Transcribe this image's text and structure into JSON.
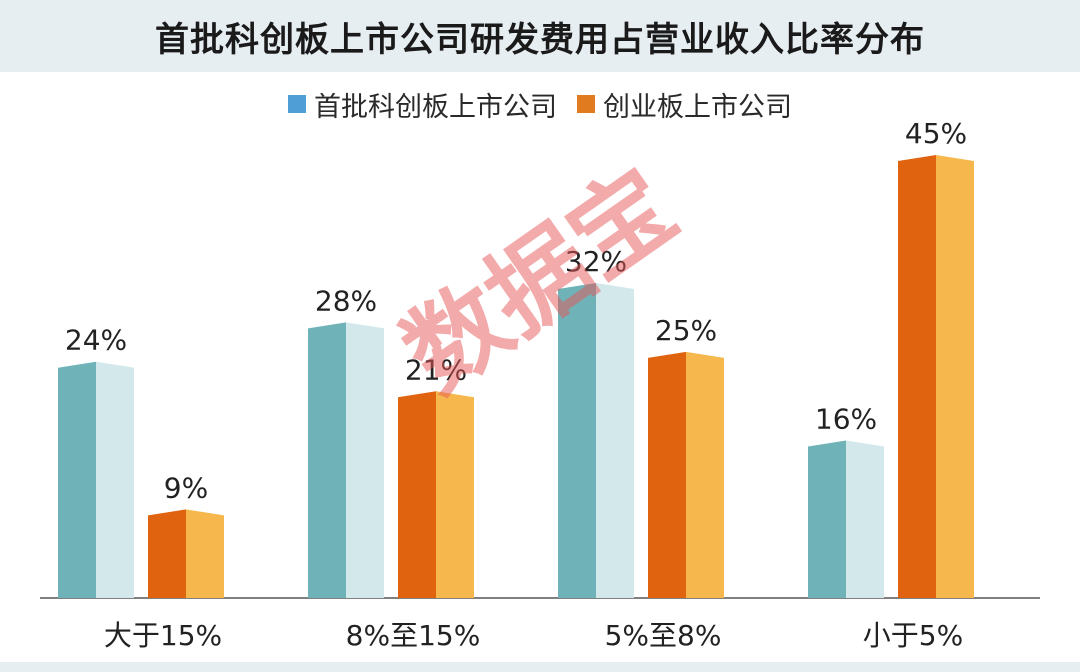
{
  "chart_data": {
    "type": "bar",
    "title": "首批科创板上市公司研发费用占营业收入比率分布",
    "categories": [
      "大于15%",
      "8%至15%",
      "5%至8%",
      "小于5%"
    ],
    "series": [
      {
        "name": "首批科创板上市公司",
        "values": [
          24,
          28,
          32,
          16
        ],
        "labels": [
          "24%",
          "28%",
          "32%",
          "16%"
        ],
        "color": "#6fb3b8",
        "legend_color": "#4f9fd6"
      },
      {
        "name": "创业板上市公司",
        "values": [
          9,
          21,
          25,
          45
        ],
        "labels": [
          "9%",
          "21%",
          "25%",
          "45%"
        ],
        "color": "#e0630f",
        "legend_color": "#e07b1f"
      }
    ],
    "ylim": [
      0,
      45
    ],
    "grid": false,
    "legend_position": "top"
  },
  "watermark": "数据宝",
  "colors": {
    "series1_light": "#d2e8ea",
    "series2_light": "#f6b84c",
    "axis": "#808080"
  }
}
